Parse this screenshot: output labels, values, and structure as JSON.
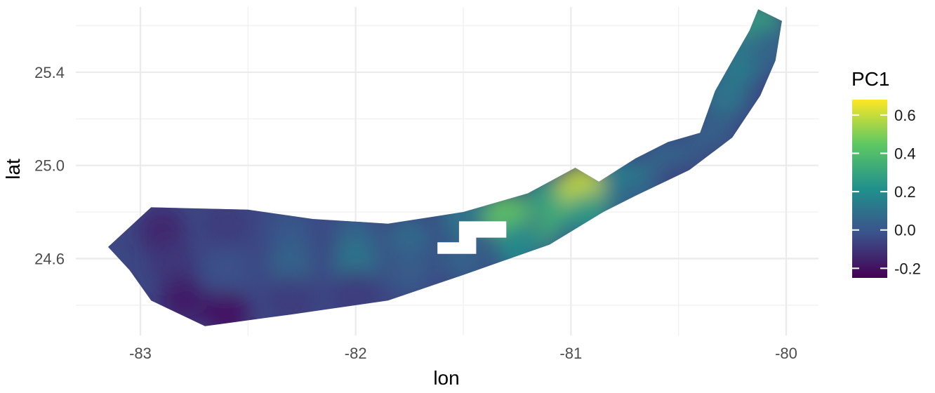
{
  "chart_data": {
    "type": "heatmap",
    "xlabel": "lon",
    "ylabel": "lat",
    "x_ticks": [
      -83,
      -82,
      -81,
      -80
    ],
    "y_ticks": [
      24.6,
      25.0,
      25.4
    ],
    "x_tick_labels": [
      "-83",
      "-82",
      "-81",
      "-80"
    ],
    "y_tick_labels": [
      "24.6",
      "25.0",
      "25.4"
    ],
    "xlim": [
      -83.3,
      -79.85
    ],
    "ylim": [
      24.27,
      25.68
    ],
    "grid": true,
    "legend": {
      "title": "PC1",
      "placement": "right",
      "ticks": [
        0.6,
        0.4,
        0.2,
        0.0,
        -0.2
      ],
      "tick_labels": [
        "0.6",
        "0.4",
        "0.2",
        "0.0",
        "-0.2"
      ],
      "range": [
        -0.25,
        0.68
      ],
      "palette": [
        "#440154",
        "#3b528b",
        "#21908c",
        "#5dc863",
        "#fde725"
      ]
    },
    "region_outline": [
      [
        -83.15,
        24.65
      ],
      [
        -82.95,
        24.82
      ],
      [
        -82.5,
        24.81
      ],
      [
        -82.2,
        24.77
      ],
      [
        -81.85,
        24.75
      ],
      [
        -81.5,
        24.8
      ],
      [
        -81.2,
        24.88
      ],
      [
        -80.98,
        24.99
      ],
      [
        -80.87,
        24.93
      ],
      [
        -80.7,
        25.03
      ],
      [
        -80.55,
        25.1
      ],
      [
        -80.4,
        25.14
      ],
      [
        -80.33,
        25.32
      ],
      [
        -80.25,
        25.45
      ],
      [
        -80.17,
        25.58
      ],
      [
        -80.13,
        25.67
      ],
      [
        -80.02,
        25.62
      ],
      [
        -80.05,
        25.45
      ],
      [
        -80.12,
        25.3
      ],
      [
        -80.25,
        25.12
      ],
      [
        -80.45,
        24.98
      ],
      [
        -80.7,
        24.87
      ],
      [
        -80.85,
        24.8
      ],
      [
        -81.1,
        24.66
      ],
      [
        -81.5,
        24.53
      ],
      [
        -81.85,
        24.42
      ],
      [
        -82.3,
        24.36
      ],
      [
        -82.7,
        24.31
      ],
      [
        -82.95,
        24.42
      ],
      [
        -83.05,
        24.55
      ]
    ],
    "missing_area": [
      [
        -81.62,
        24.67
      ],
      [
        -81.52,
        24.67
      ],
      [
        -81.52,
        24.76
      ],
      [
        -81.3,
        24.76
      ],
      [
        -81.3,
        24.69
      ],
      [
        -81.44,
        24.69
      ],
      [
        -81.44,
        24.62
      ],
      [
        -81.62,
        24.62
      ]
    ],
    "values": [
      {
        "lon": -82.9,
        "lat": 24.72,
        "pc1": -0.15
      },
      {
        "lon": -82.85,
        "lat": 24.58,
        "pc1": -0.1
      },
      {
        "lon": -82.8,
        "lat": 24.42,
        "pc1": -0.18
      },
      {
        "lon": -82.6,
        "lat": 24.75,
        "pc1": -0.08
      },
      {
        "lon": -82.6,
        "lat": 24.55,
        "pc1": -0.02
      },
      {
        "lon": -82.6,
        "lat": 24.36,
        "pc1": -0.2
      },
      {
        "lon": -82.3,
        "lat": 24.72,
        "pc1": 0.0
      },
      {
        "lon": -82.3,
        "lat": 24.58,
        "pc1": 0.05
      },
      {
        "lon": -82.3,
        "lat": 24.42,
        "pc1": -0.08
      },
      {
        "lon": -82.0,
        "lat": 24.7,
        "pc1": 0.05
      },
      {
        "lon": -82.0,
        "lat": 24.58,
        "pc1": 0.12
      },
      {
        "lon": -82.0,
        "lat": 24.45,
        "pc1": -0.08
      },
      {
        "lon": -81.75,
        "lat": 24.68,
        "pc1": 0.08
      },
      {
        "lon": -81.75,
        "lat": 24.55,
        "pc1": 0.02
      },
      {
        "lon": -81.5,
        "lat": 24.78,
        "pc1": 0.12
      },
      {
        "lon": -81.5,
        "lat": 24.6,
        "pc1": 0.05
      },
      {
        "lon": -81.3,
        "lat": 24.78,
        "pc1": 0.45
      },
      {
        "lon": -81.25,
        "lat": 24.65,
        "pc1": 0.2
      },
      {
        "lon": -81.1,
        "lat": 24.85,
        "pc1": 0.3
      },
      {
        "lon": -81.05,
        "lat": 24.72,
        "pc1": 0.35
      },
      {
        "lon": -80.95,
        "lat": 24.9,
        "pc1": 0.6
      },
      {
        "lon": -80.92,
        "lat": 24.78,
        "pc1": 0.25
      },
      {
        "lon": -81.0,
        "lat": 24.65,
        "pc1": 0.05
      },
      {
        "lon": -80.75,
        "lat": 24.92,
        "pc1": 0.18
      },
      {
        "lon": -80.7,
        "lat": 24.85,
        "pc1": 0.05
      },
      {
        "lon": -80.55,
        "lat": 25.0,
        "pc1": 0.08
      },
      {
        "lon": -80.5,
        "lat": 24.92,
        "pc1": -0.05
      },
      {
        "lon": -80.35,
        "lat": 25.1,
        "pc1": 0.05
      },
      {
        "lon": -80.28,
        "lat": 25.3,
        "pc1": 0.12
      },
      {
        "lon": -80.2,
        "lat": 25.45,
        "pc1": 0.15
      },
      {
        "lon": -80.12,
        "lat": 25.6,
        "pc1": 0.3
      },
      {
        "lon": -80.08,
        "lat": 25.5,
        "pc1": 0.05
      },
      {
        "lon": -80.3,
        "lat": 25.0,
        "pc1": -0.05
      }
    ]
  }
}
